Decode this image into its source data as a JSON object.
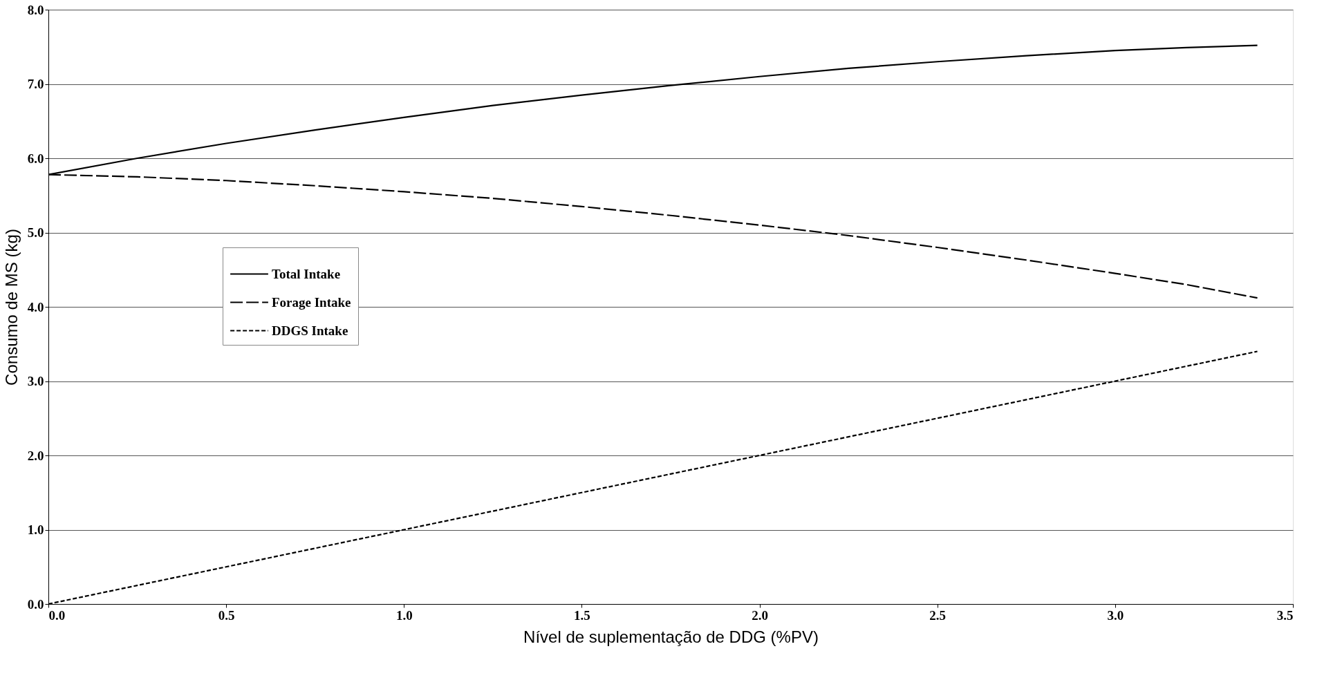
{
  "chart_data": {
    "type": "line",
    "xlabel": "Nível de suplementação de DDG (%PV)",
    "ylabel": "Consumo de MS (kg)",
    "x": [
      0,
      0.25,
      0.5,
      0.75,
      1.0,
      1.25,
      1.5,
      1.75,
      2.0,
      2.25,
      2.5,
      2.75,
      3.0,
      3.2,
      3.4
    ],
    "series": [
      {
        "name": "Total Intake",
        "color": "#000000",
        "line_style": "solid",
        "values": [
          5.78,
          6.0,
          6.2,
          6.38,
          6.55,
          6.71,
          6.85,
          6.98,
          7.1,
          7.21,
          7.3,
          7.38,
          7.45,
          7.49,
          7.52
        ]
      },
      {
        "name": "Forage Intake",
        "color": "#000000",
        "line_style": "dashed",
        "values": [
          5.78,
          5.75,
          5.7,
          5.63,
          5.55,
          5.46,
          5.35,
          5.23,
          5.1,
          4.96,
          4.8,
          4.63,
          4.45,
          4.3,
          4.12
        ]
      },
      {
        "name": "DDGS Intake",
        "color": "#000000",
        "line_style": "dotted",
        "values": [
          0,
          0.25,
          0.5,
          0.75,
          1.0,
          1.25,
          1.5,
          1.75,
          2.0,
          2.25,
          2.5,
          2.75,
          3.0,
          3.2,
          3.4
        ]
      }
    ],
    "xlim": [
      0,
      3.5
    ],
    "xticks": [
      {
        "value": 0,
        "label": "0.0"
      },
      0.5,
      {
        "value": 1,
        "label": "1.0"
      },
      1.5,
      {
        "value": 2,
        "label": "2.0"
      },
      2.5,
      {
        "value": 3,
        "label": "3.0"
      },
      3.5
    ],
    "ylim": [
      0,
      8
    ],
    "yticks": [
      {
        "value": 0,
        "label": "0.0"
      },
      {
        "value": 1,
        "label": "1.0"
      },
      {
        "value": 2,
        "label": "2.0"
      },
      {
        "value": 3,
        "label": "3.0"
      },
      {
        "value": 4,
        "label": "4.0"
      },
      {
        "value": 5,
        "label": "5.0"
      },
      {
        "value": 6,
        "label": "6.0"
      },
      {
        "value": 7,
        "label": "7.0"
      },
      {
        "value": 8,
        "label": "8.0"
      }
    ],
    "grid": "y",
    "legend": "left",
    "marker": "none"
  }
}
